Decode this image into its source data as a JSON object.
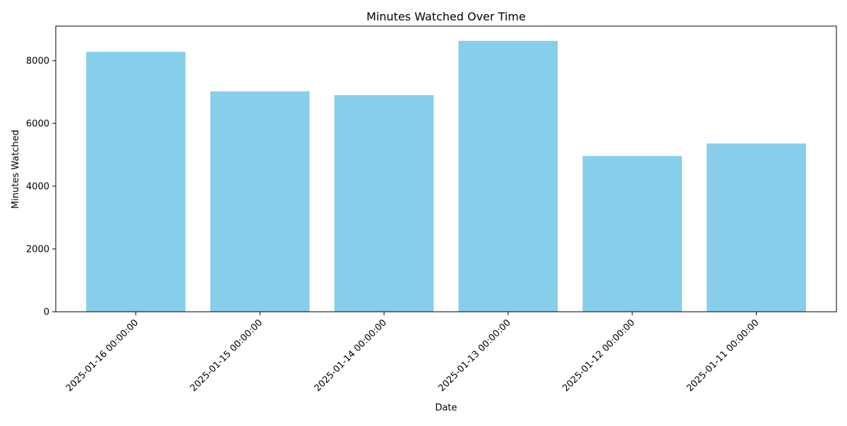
{
  "chart_data": {
    "type": "bar",
    "title": "Minutes Watched Over Time",
    "xlabel": "Date",
    "ylabel": "Minutes Watched",
    "categories": [
      "2025-01-16 00:00:00",
      "2025-01-15 00:00:00",
      "2025-01-14 00:00:00",
      "2025-01-13 00:00:00",
      "2025-01-12 00:00:00",
      "2025-01-11 00:00:00"
    ],
    "values": [
      8280,
      7020,
      6900,
      8630,
      4960,
      5360
    ],
    "ylim": [
      0,
      9100
    ],
    "yticks": [
      0,
      2000,
      4000,
      6000,
      8000
    ],
    "bar_color": "#87ceeb",
    "grid": false,
    "legend": "none"
  }
}
